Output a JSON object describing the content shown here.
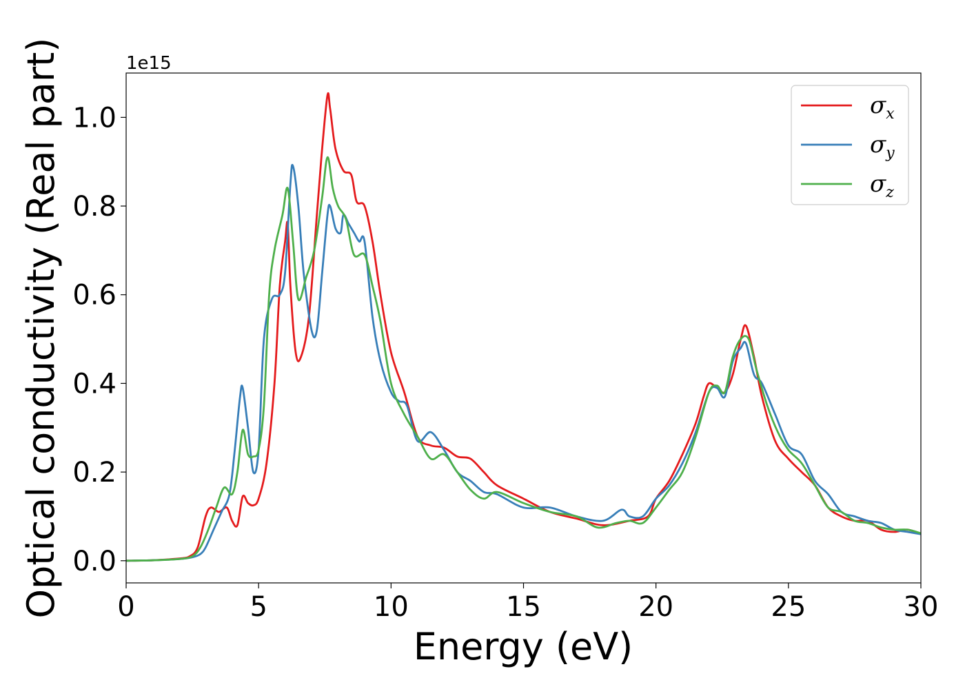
{
  "chart_data": {
    "type": "line",
    "xlabel": "Energy (eV)",
    "ylabel": "Optical conductivity (Real part)",
    "y_offset_text": "1e15",
    "xlim": [
      0,
      30
    ],
    "ylim": [
      -0.05,
      1.1
    ],
    "y_scale_factor": 1000000000000000.0,
    "xticks": [
      0,
      5,
      10,
      15,
      20,
      25,
      30
    ],
    "xtick_labels": [
      "0",
      "5",
      "10",
      "15",
      "20",
      "25",
      "30"
    ],
    "yticks": [
      0.0,
      0.2,
      0.4,
      0.6,
      0.8,
      1.0
    ],
    "ytick_labels": [
      "0.0",
      "0.2",
      "0.4",
      "0.6",
      "0.8",
      "1.0"
    ],
    "grid": false,
    "legend_position": "top-right",
    "series": [
      {
        "name": "σx",
        "legend_base": "σ",
        "legend_sub": "x",
        "color": "#e41a1c",
        "x": [
          0,
          1,
          2,
          2.4,
          2.7,
          3.0,
          3.2,
          3.5,
          3.8,
          4.0,
          4.2,
          4.4,
          4.6,
          4.8,
          5.0,
          5.3,
          5.6,
          5.8,
          6.0,
          6.1,
          6.2,
          6.4,
          6.6,
          6.9,
          7.2,
          7.4,
          7.6,
          7.7,
          7.9,
          8.2,
          8.5,
          8.7,
          9.0,
          9.3,
          9.6,
          10.0,
          10.5,
          11.0,
          11.5,
          12.0,
          12.5,
          13.0,
          13.5,
          14.0,
          15.0,
          16.0,
          17.0,
          18.0,
          19.0,
          19.7,
          20.0,
          20.5,
          21.0,
          21.5,
          21.8,
          22.0,
          22.3,
          22.6,
          22.9,
          23.2,
          23.4,
          23.7,
          24.0,
          24.5,
          25.0,
          25.5,
          26.0,
          26.5,
          27.0,
          27.5,
          28.0,
          28.5,
          29.0,
          29.5,
          30.0
        ],
        "y": [
          0.0,
          0.001,
          0.005,
          0.01,
          0.03,
          0.1,
          0.12,
          0.11,
          0.12,
          0.09,
          0.08,
          0.145,
          0.13,
          0.125,
          0.14,
          0.22,
          0.4,
          0.62,
          0.72,
          0.76,
          0.62,
          0.47,
          0.46,
          0.55,
          0.78,
          0.93,
          1.05,
          1.02,
          0.93,
          0.88,
          0.87,
          0.81,
          0.8,
          0.72,
          0.6,
          0.47,
          0.38,
          0.28,
          0.26,
          0.255,
          0.235,
          0.23,
          0.2,
          0.17,
          0.14,
          0.11,
          0.095,
          0.08,
          0.09,
          0.1,
          0.14,
          0.18,
          0.24,
          0.31,
          0.37,
          0.4,
          0.39,
          0.38,
          0.42,
          0.5,
          0.53,
          0.46,
          0.37,
          0.27,
          0.23,
          0.2,
          0.17,
          0.12,
          0.1,
          0.09,
          0.09,
          0.07,
          0.065,
          0.07,
          0.06
        ]
      },
      {
        "name": "σy",
        "legend_base": "σ",
        "legend_sub": "y",
        "color": "#377eb8",
        "x": [
          0,
          1,
          2,
          2.5,
          2.8,
          3.0,
          3.3,
          3.6,
          3.9,
          4.1,
          4.3,
          4.4,
          4.6,
          4.8,
          5.0,
          5.2,
          5.5,
          5.8,
          6.0,
          6.2,
          6.3,
          6.5,
          6.7,
          7.0,
          7.2,
          7.4,
          7.6,
          7.7,
          7.9,
          8.1,
          8.2,
          8.4,
          8.6,
          8.8,
          9.0,
          9.3,
          9.6,
          10.0,
          10.3,
          10.6,
          11.0,
          11.5,
          12.0,
          12.5,
          13.0,
          13.5,
          14.0,
          15.0,
          16.0,
          17.0,
          18.0,
          18.7,
          19.0,
          19.5,
          20.0,
          20.5,
          21.0,
          21.5,
          22.0,
          22.3,
          22.6,
          22.9,
          23.2,
          23.4,
          23.7,
          24.0,
          24.5,
          25.0,
          25.5,
          26.0,
          26.5,
          27.0,
          27.5,
          28.0,
          28.5,
          29.0,
          29.5,
          30.0
        ],
        "y": [
          0.0,
          0.001,
          0.004,
          0.008,
          0.015,
          0.03,
          0.07,
          0.11,
          0.15,
          0.25,
          0.37,
          0.39,
          0.3,
          0.2,
          0.25,
          0.5,
          0.59,
          0.6,
          0.65,
          0.85,
          0.89,
          0.8,
          0.65,
          0.52,
          0.52,
          0.65,
          0.78,
          0.8,
          0.75,
          0.74,
          0.78,
          0.76,
          0.74,
          0.72,
          0.72,
          0.55,
          0.45,
          0.38,
          0.36,
          0.35,
          0.27,
          0.29,
          0.25,
          0.2,
          0.18,
          0.155,
          0.15,
          0.12,
          0.12,
          0.1,
          0.09,
          0.115,
          0.1,
          0.1,
          0.14,
          0.17,
          0.22,
          0.29,
          0.38,
          0.39,
          0.37,
          0.45,
          0.48,
          0.49,
          0.42,
          0.4,
          0.33,
          0.26,
          0.24,
          0.18,
          0.15,
          0.11,
          0.1,
          0.09,
          0.085,
          0.07,
          0.065,
          0.06
        ]
      },
      {
        "name": "σz",
        "legend_base": "σ",
        "legend_sub": "z",
        "color": "#4daf4a",
        "x": [
          0,
          1,
          2,
          2.5,
          2.8,
          3.1,
          3.4,
          3.7,
          4.0,
          4.2,
          4.4,
          4.6,
          4.8,
          5.0,
          5.2,
          5.4,
          5.6,
          5.9,
          6.1,
          6.3,
          6.5,
          6.8,
          7.1,
          7.4,
          7.6,
          7.8,
          8.0,
          8.3,
          8.6,
          9.0,
          9.3,
          9.6,
          10.0,
          10.5,
          11.0,
          11.5,
          12.0,
          12.5,
          13.0,
          13.5,
          14.0,
          15.0,
          16.0,
          17.0,
          17.8,
          18.5,
          19.0,
          19.5,
          20.0,
          20.5,
          21.0,
          21.5,
          22.0,
          22.3,
          22.6,
          22.9,
          23.2,
          23.5,
          23.8,
          24.2,
          24.6,
          25.0,
          25.5,
          26.0,
          26.5,
          27.0,
          27.5,
          28.0,
          28.5,
          29.0,
          29.5,
          30.0
        ],
        "y": [
          0.0,
          0.001,
          0.004,
          0.01,
          0.03,
          0.07,
          0.12,
          0.165,
          0.15,
          0.2,
          0.295,
          0.24,
          0.235,
          0.25,
          0.35,
          0.6,
          0.7,
          0.78,
          0.84,
          0.72,
          0.59,
          0.64,
          0.7,
          0.82,
          0.91,
          0.84,
          0.8,
          0.77,
          0.69,
          0.69,
          0.62,
          0.54,
          0.4,
          0.33,
          0.28,
          0.23,
          0.24,
          0.2,
          0.16,
          0.14,
          0.155,
          0.13,
          0.11,
          0.1,
          0.075,
          0.085,
          0.09,
          0.085,
          0.12,
          0.16,
          0.2,
          0.28,
          0.38,
          0.395,
          0.38,
          0.46,
          0.5,
          0.5,
          0.43,
          0.35,
          0.29,
          0.25,
          0.22,
          0.17,
          0.12,
          0.11,
          0.09,
          0.085,
          0.075,
          0.07,
          0.07,
          0.062
        ]
      }
    ]
  }
}
